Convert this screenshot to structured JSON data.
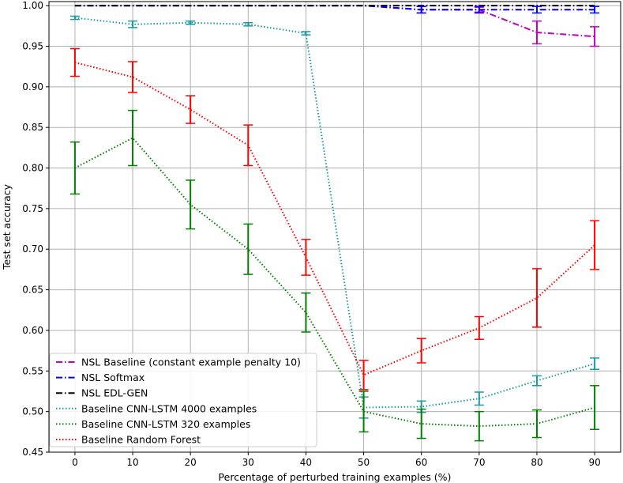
{
  "chart_data": {
    "type": "line",
    "title": "",
    "xlabel": "Percentage of perturbed training examples (%)",
    "ylabel": "Test set accuracy",
    "xlim": [
      -4.5,
      94.5
    ],
    "ylim": [
      0.45,
      1.005
    ],
    "xticks": [
      0,
      10,
      20,
      30,
      40,
      50,
      60,
      70,
      80,
      90
    ],
    "yticks": [
      0.45,
      0.5,
      0.55,
      0.6,
      0.65,
      0.7,
      0.75,
      0.8,
      0.85,
      0.9,
      0.95,
      1.0
    ],
    "ytick_labels": [
      "0.45",
      "0.50",
      "0.55",
      "0.60",
      "0.65",
      "0.70",
      "0.75",
      "0.80",
      "0.85",
      "0.90",
      "0.95",
      "1.00"
    ],
    "grid": true,
    "legend_position": "lower-left",
    "x": [
      0,
      10,
      20,
      30,
      40,
      50,
      60,
      70,
      80,
      90
    ],
    "series": [
      {
        "name": "NSL Baseline (constant example penalty 10)",
        "color": "#bf00bf",
        "dash": "dashdot",
        "values": [
          1.0,
          1.0,
          1.0,
          1.0,
          1.0,
          1.0,
          0.995,
          0.995,
          0.967,
          0.962
        ],
        "errors": [
          0,
          0,
          0,
          0,
          0,
          0,
          0.004,
          0.003,
          0.014,
          0.012
        ]
      },
      {
        "name": "NSL Softmax",
        "color": "#0000ff",
        "dash": "dashdot",
        "values": [
          1.0,
          1.0,
          1.0,
          1.0,
          1.0,
          1.0,
          0.995,
          0.995,
          0.995,
          0.995
        ],
        "errors": [
          0,
          0,
          0,
          0,
          0,
          0,
          0.004,
          0.004,
          0.004,
          0.004
        ]
      },
      {
        "name": "NSL EDL-GEN",
        "color": "#000000",
        "dash": "dashdot",
        "values": [
          1.0,
          1.0,
          1.0,
          1.0,
          1.0,
          1.0,
          1.0,
          1.0,
          1.0,
          1.0
        ],
        "errors": [
          0,
          0,
          0,
          0,
          0,
          0,
          0,
          0,
          0,
          0
        ]
      },
      {
        "name": "Baseline CNN-LSTM 4000 examples",
        "color": "#1a9aa0",
        "dash": "dotted",
        "values": [
          0.985,
          0.977,
          0.979,
          0.977,
          0.966,
          0.505,
          0.506,
          0.516,
          0.538,
          0.559
        ],
        "errors": [
          0.002,
          0.004,
          0.002,
          0.002,
          0.002,
          0.013,
          0.007,
          0.008,
          0.006,
          0.007
        ]
      },
      {
        "name": "Baseline CNN-LSTM 320 examples",
        "color": "#008000",
        "dash": "dotted",
        "values": [
          0.8,
          0.837,
          0.755,
          0.7,
          0.622,
          0.5,
          0.485,
          0.482,
          0.485,
          0.505
        ],
        "errors": [
          0.032,
          0.034,
          0.03,
          0.031,
          0.024,
          0.025,
          0.018,
          0.018,
          0.017,
          0.027
        ]
      },
      {
        "name": "Baseline Random Forest",
        "color": "#ff0000",
        "dash": "dotted",
        "values": [
          0.93,
          0.912,
          0.872,
          0.828,
          0.69,
          0.545,
          0.575,
          0.603,
          0.64,
          0.705
        ],
        "errors": [
          0.017,
          0.019,
          0.017,
          0.025,
          0.022,
          0.018,
          0.015,
          0.014,
          0.036,
          0.03
        ]
      }
    ]
  }
}
